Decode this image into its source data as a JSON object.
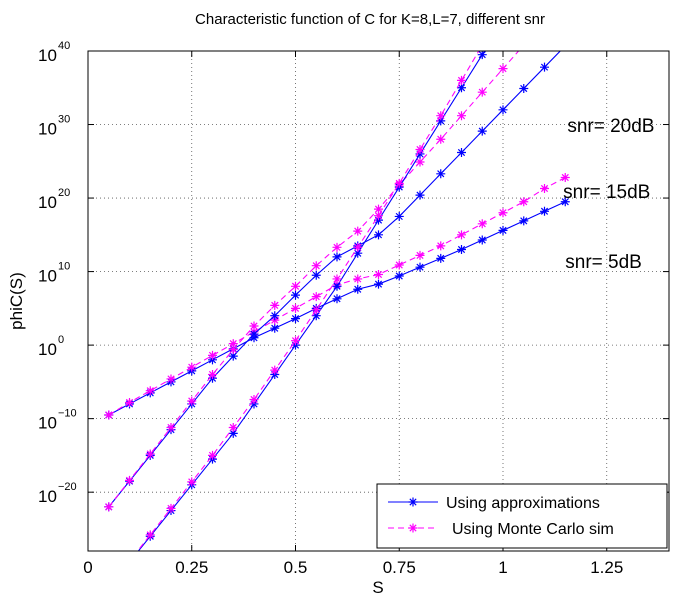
{
  "chart_data": {
    "type": "line",
    "title": "Characteristic function of C for K=8,L=7, different snr",
    "xlabel": "S",
    "ylabel": "phiC(S)",
    "xlim": [
      0,
      1.4
    ],
    "ylim_log10": [
      -28,
      40
    ],
    "yscale": "log",
    "grid": true,
    "x_ticks": [
      0,
      0.25,
      0.5,
      0.75,
      1,
      1.25
    ],
    "x_tick_labels": [
      "0",
      "0.25",
      "0.5",
      "0.75",
      "1",
      "1.25"
    ],
    "y_ticks": [
      {
        "base": "10",
        "exp": "40",
        "log10": 40
      },
      {
        "base": "10",
        "exp": "30",
        "log10": 30
      },
      {
        "base": "10",
        "exp": "20",
        "log10": 20
      },
      {
        "base": "10",
        "exp": "10",
        "log10": 10
      },
      {
        "base": "10",
        "exp": "0",
        "log10": 0
      },
      {
        "base": "10",
        "exp": "−10",
        "log10": -10
      },
      {
        "base": "10",
        "exp": "−20",
        "log10": -20
      }
    ],
    "x": [
      0.05,
      0.1,
      0.15,
      0.2,
      0.25,
      0.3,
      0.35,
      0.4,
      0.45,
      0.5,
      0.55,
      0.6,
      0.65,
      0.7,
      0.75,
      0.8,
      0.85,
      0.9,
      0.95,
      1.0,
      1.05,
      1.1,
      1.15
    ],
    "series": [
      {
        "name": "Using approximations",
        "group": "snr= 5dB",
        "color": "#0000ff",
        "style": "solid",
        "marker": "*",
        "log10_values": [
          -9.5,
          -8.0,
          -6.5,
          -5.0,
          -3.5,
          -2.0,
          -0.5,
          1.0,
          2.3,
          3.6,
          5.0,
          6.3,
          7.6,
          8.3,
          9.4,
          10.6,
          11.8,
          13.0,
          14.3,
          15.6,
          16.9,
          18.2,
          19.5
        ]
      },
      {
        "name": "Using Monte Carlo sim",
        "group": "snr= 5dB",
        "color": "#ff00ff",
        "style": "dashed",
        "marker": "*",
        "log10_values": [
          -9.5,
          -7.8,
          -6.2,
          -4.6,
          -3.0,
          -1.4,
          0.2,
          1.8,
          3.4,
          5.0,
          6.6,
          8.2,
          9.0,
          9.6,
          10.9,
          12.2,
          13.5,
          15.0,
          16.5,
          18.0,
          19.5,
          21.3,
          22.8
        ]
      },
      {
        "name": "Using approximations",
        "group": "snr= 15dB",
        "color": "#0000ff",
        "style": "solid",
        "marker": "*",
        "log10_values": [
          -22.0,
          -18.5,
          -15.0,
          -11.5,
          -8.0,
          -4.5,
          -1.5,
          1.5,
          4.0,
          6.8,
          9.5,
          12.0,
          13.5,
          15.0,
          17.5,
          20.4,
          23.3,
          26.2,
          29.1,
          32.0,
          34.9,
          37.8,
          40.7
        ]
      },
      {
        "name": "Using Monte Carlo sim",
        "group": "snr= 15dB",
        "color": "#ff00ff",
        "style": "dashed",
        "marker": "*",
        "log10_values": [
          -22.0,
          -18.4,
          -14.8,
          -11.2,
          -7.6,
          -4.0,
          -0.6,
          2.6,
          5.4,
          8.0,
          10.8,
          13.3,
          15.5,
          18.5,
          21.8,
          24.9,
          28.0,
          31.2,
          34.4,
          37.6,
          40.8,
          44.0,
          46.5
        ]
      },
      {
        "name": "Using approximations",
        "group": "snr= 20dB",
        "color": "#0000ff",
        "style": "solid",
        "marker": "*",
        "log10_values": [
          -33.0,
          -29.5,
          -26.0,
          -22.5,
          -19.0,
          -15.5,
          -12.0,
          -8.0,
          -4.0,
          0.0,
          4.0,
          8.0,
          12.5,
          17.0,
          21.5,
          26.0,
          30.5,
          35.0,
          39.5,
          44.0,
          48.5,
          53.0,
          57.5
        ]
      },
      {
        "name": "Using Monte Carlo sim",
        "group": "snr= 20dB",
        "color": "#ff00ff",
        "style": "dashed",
        "marker": "*",
        "log10_values": [
          -33.0,
          -29.4,
          -25.8,
          -22.2,
          -18.6,
          -15.0,
          -11.2,
          -7.4,
          -3.4,
          0.6,
          4.8,
          9.0,
          13.3,
          17.6,
          22.0,
          26.6,
          31.2,
          36.0,
          40.8,
          45.6,
          50.4,
          55.2,
          60.0
        ]
      }
    ],
    "annotations": [
      {
        "text": "snr= 20dB",
        "x": 1.155,
        "log10": 29.0
      },
      {
        "text": "snr= 15dB",
        "x": 1.145,
        "log10": 20.0
      },
      {
        "text": "snr= 5dB",
        "x": 1.15,
        "log10": 10.5
      }
    ],
    "legend": {
      "placement": "bottom-right",
      "entries": [
        {
          "label": "Using approximations",
          "color": "#0000ff",
          "style": "solid"
        },
        {
          "label": "Using Monte Carlo sim",
          "color": "#ff00ff",
          "style": "dashed"
        }
      ]
    }
  }
}
